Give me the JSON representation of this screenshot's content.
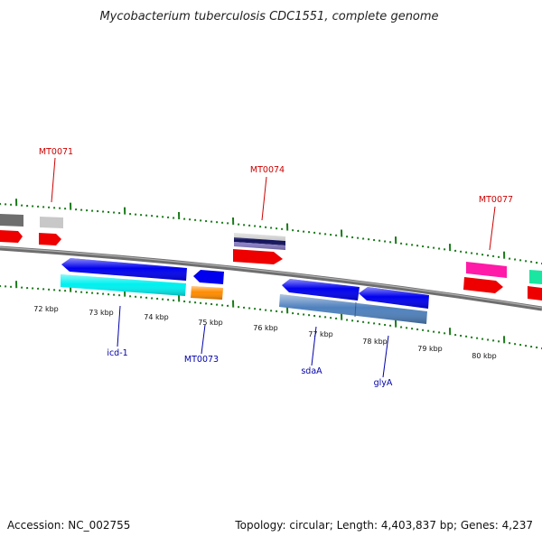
{
  "title": "Mycobacterium tuberculosis CDC1551, complete genome",
  "footer": {
    "accession": "Accession: NC_002755",
    "summary": "Topology: circular; Length: 4,403,837 bp; Genes: 4,237"
  },
  "scale_labels": [
    "72 kbp",
    "73 kbp",
    "74 kbp",
    "75 kbp",
    "76 kbp",
    "77 kbp",
    "78 kbp",
    "79 kbp",
    "80 kbp"
  ],
  "gene_labels": {
    "forward": [
      "MT0071",
      "MT0074",
      "MT0077"
    ],
    "reverse": [
      "icd-1",
      "MT0073",
      "sdaA",
      "glyA"
    ]
  },
  "colors": {
    "backbone": "#808080",
    "tick": "#1a7a1a",
    "red_label": "#cc0000",
    "blue_label": "#0000aa",
    "feature_red": "#ff0000",
    "feature_blue": "#0000ee",
    "feature_cyan": "#00ffff",
    "feature_orange": "#ff8c00",
    "feature_steel": "#4f81bd",
    "feature_magenta": "#ff1aa8",
    "feature_teal": "#19e6a0",
    "feature_grey": "#707070",
    "feature_lightgrey": "#c8c8c8",
    "feature_purple": "#8a7ec8"
  }
}
